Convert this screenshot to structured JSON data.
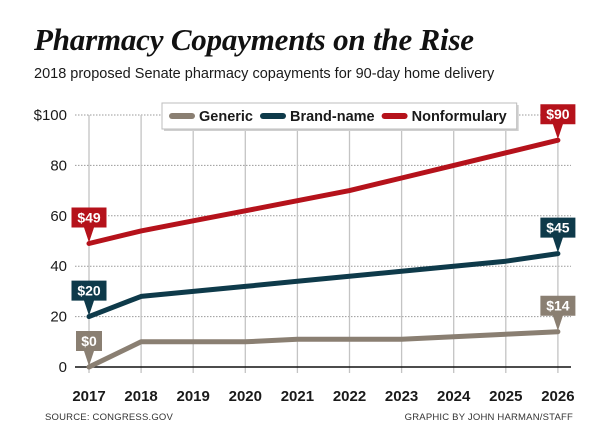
{
  "header": {
    "title": "Pharmacy Copayments on the Rise",
    "subtitle": "2018 proposed Senate pharmacy copayments for 90-day home delivery"
  },
  "footer": {
    "source": "SOURCE: CONGRESS.GOV",
    "credit": "GRAPHIC BY JOHN HARMAN/STAFF"
  },
  "chart_data": {
    "type": "line",
    "title": "Pharmacy Copayments on the Rise",
    "subtitle": "2018 proposed Senate pharmacy copayments for 90-day home delivery",
    "xlabel": "",
    "ylabel": "",
    "x": [
      "2017",
      "2018",
      "2019",
      "2020",
      "2021",
      "2022",
      "2023",
      "2024",
      "2025",
      "2026"
    ],
    "ylim": [
      0,
      100
    ],
    "yticks": [
      0,
      20,
      40,
      60,
      80,
      100
    ],
    "ytick_labels": [
      "0",
      "20",
      "40",
      "60",
      "80",
      "$100"
    ],
    "grid": true,
    "legend_position": "top-center",
    "series": [
      {
        "name": "Generic",
        "color": "#8a7f72",
        "values": [
          0,
          10,
          10,
          10,
          11,
          11,
          11,
          12,
          13,
          14
        ],
        "start_label": "$0",
        "end_label": "$14"
      },
      {
        "name": "Brand-name",
        "color": "#0e3a4a",
        "values": [
          20,
          28,
          30,
          32,
          34,
          36,
          38,
          40,
          42,
          45
        ],
        "start_label": "$20",
        "end_label": "$45"
      },
      {
        "name": "Nonformulary",
        "color": "#b5121b",
        "values": [
          49,
          54,
          58,
          62,
          66,
          70,
          75,
          80,
          85,
          90
        ],
        "start_label": "$49",
        "end_label": "$90"
      }
    ]
  }
}
